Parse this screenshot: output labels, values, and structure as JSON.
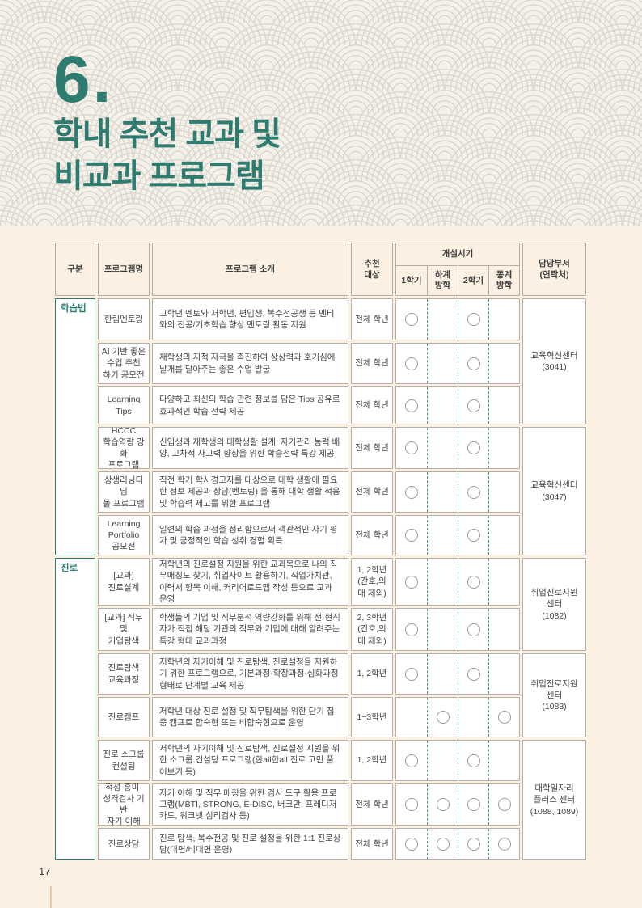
{
  "title": {
    "number": "6.",
    "line1": "학내 추천 교과 및",
    "line2": "비교과 프로그램"
  },
  "page_number": "17",
  "colors": {
    "accent_teal": "#2e7b70",
    "page_cream": "#fbf0e2",
    "banner_gray": "#f3f1ea",
    "cell_border": "#b3afa7",
    "footer_rule_tan": "#e9c9a0"
  },
  "table": {
    "header": {
      "category": "구분",
      "program_name": "프로그램명",
      "program_intro": "프로그램 소개",
      "target": "추천\n대상",
      "schedule": "개설시기",
      "terms": [
        "1학기",
        "하계\n방학",
        "2학기",
        "동계\n방학"
      ],
      "department": "담당부서\n(연락처)"
    },
    "groups": [
      {
        "label": "학습법"
      },
      {
        "label": "진로"
      }
    ],
    "departments": [
      {
        "label": "교육혁신센터\n(3041)"
      },
      {
        "label": "교육혁신센터\n(3047)"
      },
      {
        "label": "취업진로지원\n센터\n(1082)"
      },
      {
        "label": "취업진로지원\n센터\n(1083)"
      },
      {
        "label": "대학일자리\n플러스 센터\n(1088, 1089)"
      }
    ],
    "rows": [
      {
        "name": "한림멘토링",
        "desc": "고학년 멘토와 저학년, 편입생, 복수전공생 등 멘티와의 전공/기초학습 향상 멘토링 활동 지원",
        "target": "전체 학년",
        "terms": [
          1,
          0,
          1,
          0
        ]
      },
      {
        "name": "AI 기반 좋은\n수업 추천\n하기 공모전",
        "desc": "재학생의 지적 자극을 촉진하여 상상력과 호기심에 날개를 달아주는 좋은 수업 발굴",
        "target": "전체 학년",
        "terms": [
          1,
          0,
          1,
          0
        ]
      },
      {
        "name": "Learning\nTips",
        "desc": "다양하고 최신의 학습 관련 정보를 담은 Tips 공유로 효과적인 학습 전략 제공",
        "target": "전체 학년",
        "terms": [
          1,
          0,
          1,
          0
        ]
      },
      {
        "name": "HCCC\n학습역량 강화\n프로그램",
        "desc": "신입생과 재학생의 대학생활 설계, 자기관리 능력 배양, 고차적 사고력 향상을 위한 학습전략 특강 제공",
        "target": "전체 학년",
        "terms": [
          1,
          0,
          1,
          0
        ]
      },
      {
        "name": "상생러닝디딤\n돌 프로그램",
        "desc": "직전 학기 학사경고자를 대상으로 대학 생활에 필요한 정보 제공과 상담(멘토링) 을 통해 대학 생활 적응 및 학습력 제고를 위한 프로그램",
        "target": "전체 학년",
        "terms": [
          1,
          0,
          1,
          0
        ]
      },
      {
        "name": "Learning\nPortfolio\n공모전",
        "desc": "일련의 학습 과정을 정리함으로써 객관적인 자기 평가 및 긍정적인 학습 성취 경험 획득",
        "target": "전체 학년",
        "terms": [
          1,
          0,
          1,
          0
        ]
      },
      {
        "name": "[교과]\n진로설계",
        "desc": "저학년의 진로설정 지원을 위한 교과목으로 나의 직무매칭도 찾기, 취업사이트 활용하기, 직업가치관, 이력서 항목 이해, 커리어로드맵 작성 등으로 교과 운영",
        "target": "1, 2학년\n(간호,의\n대 제외)",
        "terms": [
          1,
          0,
          1,
          0
        ]
      },
      {
        "name": "[교과] 직무 및\n기업탐색",
        "desc": "학생들의 기업 및 직무분석 역량강화를 위해 전·현직자가 직접 해당 기관의 직무와 기업에 대해 알려주는 특강 형태 교과과정",
        "target": "2, 3학년\n(간호,의\n대 제외)",
        "terms": [
          1,
          0,
          1,
          0
        ]
      },
      {
        "name": "진로탐색\n교육과정",
        "desc": "저학년의 자기이해 및 진로탐색, 진로설정을 지원하기 위한 프로그램으로, 기본과정-확장과정-심화과정 형태로 단계별 교육 제공",
        "target": "1, 2학년",
        "terms": [
          1,
          0,
          1,
          0
        ]
      },
      {
        "name": "진로캠프",
        "desc": "저학년 대상 진로 설정 및 직무탐색을 위한 단기 집중 캠프로 합숙형 또는 비합숙형으로 운영",
        "target": "1~3학년",
        "terms": [
          0,
          1,
          0,
          1
        ]
      },
      {
        "name": "진로 소그룹\n컨설팅",
        "desc": "저학년의 자기이해 및 진로탐색, 진로설정 지원을 위한 소그룹 컨설팅 프로그램(한all한all 진로 고민 풀어보기 등)",
        "target": "1, 2학년",
        "terms": [
          1,
          0,
          1,
          0
        ]
      },
      {
        "name": "적성·흥미·\n성격검사 기반\n자기 이해",
        "desc": "자기 이해 및 직무 매칭을 위한 검사 도구 활용 프로그램(MBTI, STRONG, E-DISC, 버크만, 프레디저 카드, 워크넷 심리검사 등)",
        "target": "전체 학년",
        "terms": [
          1,
          1,
          1,
          1
        ]
      },
      {
        "name": "진로상담",
        "desc": "진로 탐색, 복수전공 및 진로 설정을 위한 1:1 진로상담(대면/비대면 운영)",
        "target": "전체 학년",
        "terms": [
          1,
          1,
          1,
          1
        ]
      }
    ]
  }
}
